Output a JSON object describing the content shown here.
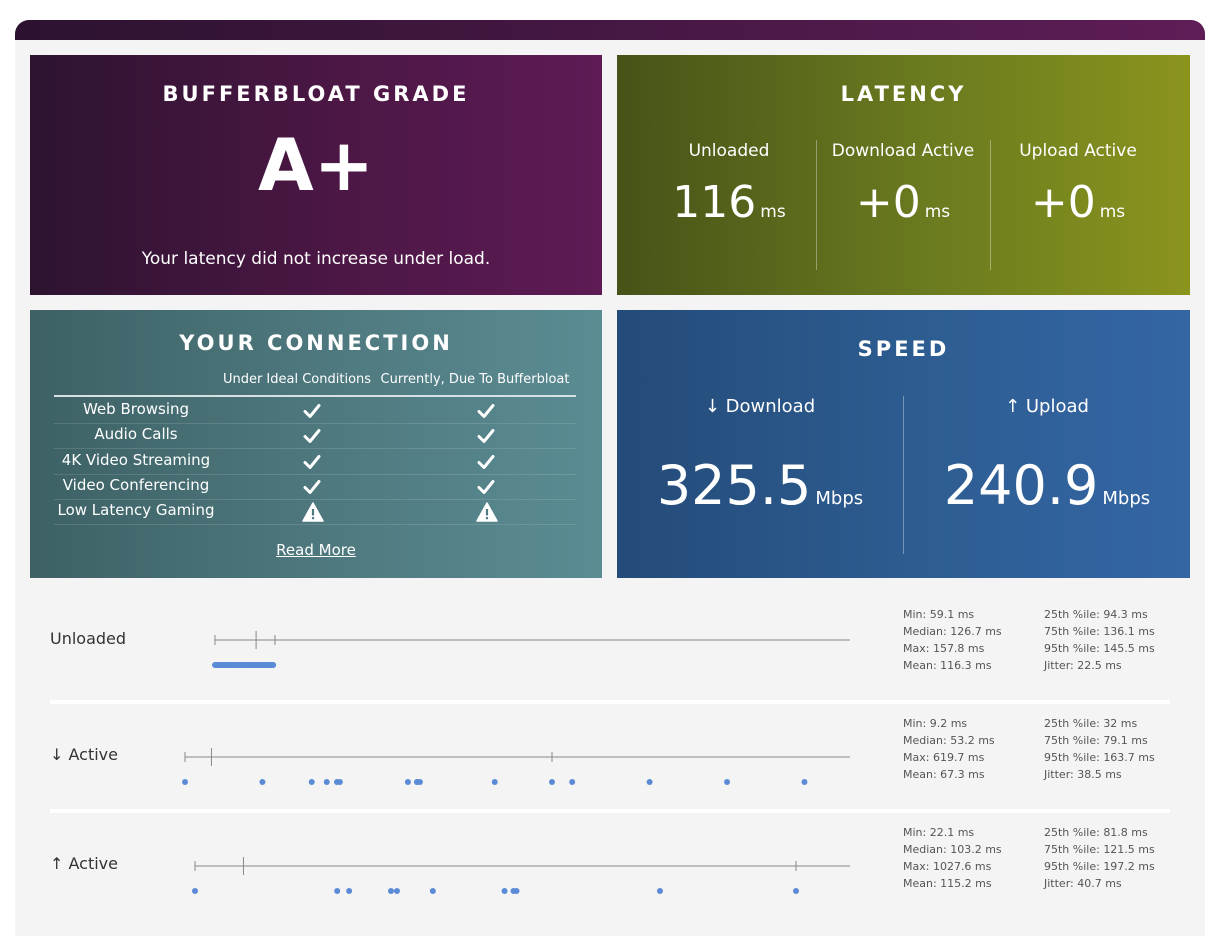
{
  "grade": {
    "title": "BUFFERBLOAT GRADE",
    "letter": "A+",
    "message": "Your latency did not increase under load."
  },
  "latency": {
    "title": "LATENCY",
    "columns": [
      {
        "label": "Unloaded",
        "value": "116",
        "unit": "ms"
      },
      {
        "label": "Download Active",
        "value": "+0",
        "unit": "ms"
      },
      {
        "label": "Upload Active",
        "value": "+0",
        "unit": "ms"
      }
    ]
  },
  "connection": {
    "title": "YOUR CONNECTION",
    "header_ideal": "Under Ideal Conditions",
    "header_current": "Currently, Due To Bufferbloat",
    "rows": [
      {
        "label": "Web Browsing",
        "ideal": "check-icon",
        "current": "check-icon"
      },
      {
        "label": "Audio Calls",
        "ideal": "check-icon",
        "current": "check-icon"
      },
      {
        "label": "4K Video Streaming",
        "ideal": "check-icon",
        "current": "check-icon"
      },
      {
        "label": "Video Conferencing",
        "ideal": "check-icon",
        "current": "check-icon"
      },
      {
        "label": "Low Latency Gaming",
        "ideal": "warning-icon",
        "current": "warning-icon"
      }
    ],
    "read_more": "Read More"
  },
  "speed": {
    "title": "SPEED",
    "download": {
      "label": "↓ Download",
      "value": "325.5",
      "unit": "Mbps"
    },
    "upload": {
      "label": "↑ Upload",
      "value": "240.9",
      "unit": "Mbps"
    }
  },
  "rows": [
    {
      "label": "Unloaded",
      "stats_left": [
        "Min: 59.1 ms",
        "Median: 126.7 ms",
        "Max: 157.8 ms",
        "Mean: 116.3 ms"
      ],
      "stats_right": [
        "25th %ile: 94.3 ms",
        "75th %ile: 136.1 ms",
        "95th %ile: 145.5 ms",
        "Jitter: 22.5 ms"
      ]
    },
    {
      "label": "↓ Active",
      "stats_left": [
        "Min: 9.2 ms",
        "Median: 53.2 ms",
        "Max: 619.7 ms",
        "Mean: 67.3 ms"
      ],
      "stats_right": [
        "25th %ile: 32 ms",
        "75th %ile: 79.1 ms",
        "95th %ile: 163.7 ms",
        "Jitter: 38.5 ms"
      ]
    },
    {
      "label": "↑ Active",
      "stats_left": [
        "Min: 22.1 ms",
        "Median: 103.2 ms",
        "Max: 1027.6 ms",
        "Mean: 115.2 ms"
      ],
      "stats_right": [
        "25th %ile: 81.8 ms",
        "75th %ile: 121.5 ms",
        "95th %ile: 197.2 ms",
        "Jitter: 40.7 ms"
      ]
    }
  ],
  "colors": {
    "dot": "#5b8bd6",
    "box": "#888888"
  }
}
